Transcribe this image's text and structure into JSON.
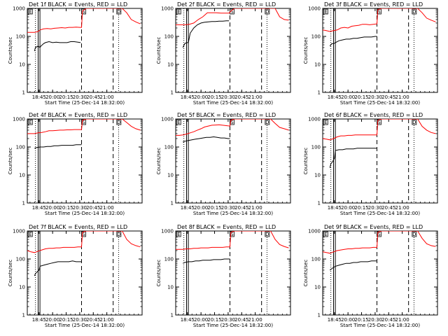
{
  "panel_titles": [
    "Det 1f BLACK = Events, RED = LLD",
    "Det 2f BLACK = Events, RED = LLD",
    "Det 3f BLACK = Events, RED = LLD",
    "Det 4f BLACK = Events, RED = LLD",
    "Det 5f BLACK = Events, RED = LLD",
    "Det 6f BLACK = Events, RED = LLD",
    "Det 7f BLACK = Events, RED = LLD",
    "Det 8f BLACK = Events, RED = LLD",
    "Det 9f BLACK = Events, RED = LLD"
  ],
  "xlabel": "Start Time (25-Dec-14 18:32:00)",
  "ylabel": "Counts/sec",
  "xticks": [
    "18:45",
    "20:00",
    "20:15",
    "20:30",
    "20:45",
    "21:00"
  ],
  "yticks": [
    "1",
    "10",
    "100",
    "1000"
  ],
  "flag_labels": [
    "E",
    "S",
    "D"
  ],
  "colors": {
    "events": "#000000",
    "lld": "#ff0000",
    "axes": "#000000",
    "background": "#ffffff"
  },
  "chart_data": [
    {
      "type": "line",
      "title": "Det 1f BLACK = Events, RED = LLD",
      "xlabel": "Start Time (25-Dec-14 18:32:00)",
      "ylabel": "Counts/sec",
      "y_scale": "log",
      "ylim": [
        1,
        1000
      ],
      "xlim_minutes": [
        0,
        127
      ],
      "series": [
        {
          "name": "Events",
          "color": "#000000",
          "x": [
            8,
            9,
            12,
            14,
            15,
            18,
            20,
            24,
            28,
            32,
            36,
            40,
            44,
            48,
            52,
            56,
            59
          ],
          "y": [
            30,
            40,
            45,
            40,
            45,
            55,
            60,
            65,
            60,
            62,
            60,
            60,
            60,
            65,
            65,
            62,
            60
          ]
        },
        {
          "name": "LLD",
          "color": "#ff0000",
          "x": [
            0,
            4,
            8,
            12,
            14,
            18,
            22,
            26,
            30,
            34,
            38,
            42,
            46,
            50,
            54,
            58,
            60,
            61,
            65,
            70,
            75,
            80,
            85,
            90,
            95,
            100,
            105,
            110,
            115,
            120,
            125
          ],
          "y": [
            140,
            140,
            140,
            150,
            170,
            185,
            190,
            185,
            195,
            200,
            205,
            200,
            210,
            210,
            215,
            210,
            210,
            800,
            1000,
            1000,
            1000,
            1000,
            1000,
            1000,
            1000,
            1000,
            1000,
            700,
            400,
            330,
            280
          ]
        }
      ]
    },
    {
      "type": "line",
      "title": "Det 2f BLACK = Events, RED = LLD",
      "xlabel": "Start Time (25-Dec-14 18:32:00)",
      "ylabel": "Counts/sec",
      "y_scale": "log",
      "ylim": [
        1,
        1000
      ],
      "xlim_minutes": [
        0,
        127
      ],
      "series": [
        {
          "name": "Events",
          "color": "#000000",
          "x": [
            8,
            10,
            12,
            14,
            16,
            20,
            24,
            28,
            32,
            36,
            40,
            44,
            48,
            52,
            56,
            59
          ],
          "y": [
            40,
            55,
            60,
            60,
            130,
            200,
            260,
            300,
            320,
            330,
            340,
            340,
            350,
            350,
            360,
            360
          ]
        },
        {
          "name": "LLD",
          "color": "#ff0000",
          "x": [
            0,
            5,
            10,
            15,
            20,
            25,
            30,
            35,
            40,
            45,
            50,
            55,
            59,
            61,
            65,
            70,
            75,
            80,
            85,
            90,
            95,
            100,
            105,
            110,
            115,
            120,
            125
          ],
          "y": [
            260,
            260,
            260,
            270,
            300,
            400,
            500,
            700,
            700,
            700,
            680,
            680,
            680,
            800,
            1000,
            1000,
            1000,
            1000,
            1000,
            1000,
            1000,
            1000,
            1000,
            1000,
            500,
            400,
            380
          ]
        }
      ]
    },
    {
      "type": "line",
      "title": "Det 3f BLACK = Events, RED = LLD",
      "xlabel": "Start Time (25-Dec-14 18:32:00)",
      "ylabel": "Counts/sec",
      "y_scale": "log",
      "ylim": [
        1,
        1000
      ],
      "xlim_minutes": [
        0,
        127
      ],
      "series": [
        {
          "name": "Events",
          "color": "#000000",
          "x": [
            8,
            10,
            12,
            14,
            18,
            22,
            26,
            30,
            34,
            38,
            42,
            46,
            50,
            54,
            58,
            60
          ],
          "y": [
            45,
            55,
            55,
            60,
            70,
            75,
            80,
            80,
            85,
            85,
            90,
            95,
            95,
            95,
            100,
            100
          ]
        },
        {
          "name": "LLD",
          "color": "#ff0000",
          "x": [
            0,
            4,
            8,
            12,
            16,
            20,
            24,
            28,
            32,
            36,
            40,
            44,
            48,
            52,
            56,
            60,
            61,
            65,
            70,
            75,
            80,
            85,
            90,
            95,
            100,
            105,
            110,
            115,
            120,
            125
          ],
          "y": [
            170,
            160,
            150,
            160,
            170,
            200,
            210,
            200,
            230,
            240,
            250,
            270,
            270,
            260,
            270,
            280,
            900,
            1000,
            1000,
            1000,
            1000,
            1000,
            1000,
            1000,
            1000,
            1000,
            700,
            450,
            380,
            330
          ]
        }
      ]
    },
    {
      "type": "line",
      "title": "Det 4f BLACK = Events, RED = LLD",
      "xlabel": "Start Time (25-Dec-14 18:32:00)",
      "ylabel": "Counts/sec",
      "y_scale": "log",
      "ylim": [
        1,
        1000
      ],
      "xlim_minutes": [
        0,
        127
      ],
      "series": [
        {
          "name": "Events",
          "color": "#000000",
          "x": [
            8,
            10,
            14,
            18,
            22,
            26,
            30,
            34,
            38,
            42,
            46,
            50,
            54,
            58,
            60
          ],
          "y": [
            90,
            95,
            100,
            100,
            105,
            105,
            110,
            110,
            115,
            115,
            115,
            115,
            120,
            120,
            120
          ]
        },
        {
          "name": "LLD",
          "color": "#ff0000",
          "x": [
            0,
            4,
            8,
            12,
            16,
            20,
            24,
            28,
            32,
            36,
            40,
            44,
            48,
            52,
            56,
            60,
            61,
            65,
            70,
            75,
            80,
            85,
            90,
            95,
            100,
            105,
            110,
            115,
            120,
            125
          ],
          "y": [
            300,
            300,
            300,
            320,
            330,
            350,
            380,
            380,
            390,
            400,
            400,
            410,
            410,
            420,
            420,
            420,
            900,
            1000,
            1000,
            1000,
            1000,
            1000,
            1000,
            1000,
            1000,
            1000,
            750,
            550,
            450,
            400
          ]
        }
      ]
    },
    {
      "type": "line",
      "title": "Det 5f BLACK = Events, RED = LLD",
      "xlabel": "Start Time (25-Dec-14 18:32:00)",
      "ylabel": "Counts/sec",
      "y_scale": "log",
      "ylim": [
        1,
        1000
      ],
      "xlim_minutes": [
        0,
        127
      ],
      "series": [
        {
          "name": "Events",
          "color": "#000000",
          "x": [
            8,
            10,
            14,
            18,
            22,
            26,
            30,
            34,
            38,
            42,
            46,
            50,
            54,
            58,
            60
          ],
          "y": [
            150,
            160,
            170,
            180,
            190,
            200,
            210,
            220,
            220,
            230,
            220,
            210,
            210,
            200,
            200
          ]
        },
        {
          "name": "LLD",
          "color": "#ff0000",
          "x": [
            0,
            4,
            8,
            12,
            16,
            20,
            24,
            28,
            32,
            36,
            40,
            44,
            48,
            52,
            56,
            60,
            61,
            65,
            70,
            75,
            80,
            85,
            90,
            95,
            100,
            105,
            110,
            115,
            120,
            125
          ],
          "y": [
            260,
            260,
            270,
            290,
            320,
            350,
            400,
            450,
            520,
            560,
            600,
            610,
            620,
            600,
            580,
            560,
            900,
            1000,
            1000,
            1000,
            1000,
            1000,
            1000,
            1000,
            1000,
            1000,
            700,
            500,
            450,
            400
          ]
        }
      ]
    },
    {
      "type": "line",
      "title": "Det 6f BLACK = Events, RED = LLD",
      "xlabel": "Start Time (25-Dec-14 18:32:00)",
      "ylabel": "Counts/sec",
      "y_scale": "log",
      "ylim": [
        1,
        1000
      ],
      "xlim_minutes": [
        0,
        127
      ],
      "series": [
        {
          "name": "Events",
          "color": "#000000",
          "x": [
            8,
            9,
            11,
            13,
            14,
            18,
            22,
            26,
            30,
            34,
            38,
            42,
            46,
            50,
            54,
            58,
            60
          ],
          "y": [
            18,
            25,
            30,
            40,
            75,
            80,
            80,
            85,
            85,
            85,
            90,
            90,
            90,
            90,
            90,
            90,
            90
          ]
        },
        {
          "name": "LLD",
          "color": "#ff0000",
          "x": [
            0,
            4,
            8,
            12,
            16,
            20,
            24,
            28,
            32,
            36,
            40,
            44,
            48,
            52,
            56,
            60,
            61,
            65,
            70,
            75,
            80,
            85,
            90,
            95,
            100,
            105,
            110,
            115,
            120,
            125
          ],
          "y": [
            200,
            190,
            180,
            200,
            230,
            250,
            250,
            260,
            260,
            270,
            270,
            270,
            270,
            270,
            270,
            270,
            900,
            1000,
            1000,
            1000,
            1000,
            1000,
            1000,
            1000,
            1000,
            1000,
            550,
            400,
            330,
            300
          ]
        }
      ]
    },
    {
      "type": "line",
      "title": "Det 7f BLACK = Events, RED = LLD",
      "xlabel": "Start Time (25-Dec-14 18:32:00)",
      "ylabel": "Counts/sec",
      "y_scale": "log",
      "ylim": [
        1,
        1000
      ],
      "xlim_minutes": [
        0,
        127
      ],
      "series": [
        {
          "name": "Events",
          "color": "#000000",
          "x": [
            8,
            9,
            11,
            13,
            14,
            18,
            22,
            26,
            30,
            34,
            38,
            42,
            46,
            50,
            54,
            58,
            60
          ],
          "y": [
            25,
            30,
            35,
            40,
            55,
            60,
            65,
            70,
            75,
            80,
            80,
            80,
            80,
            85,
            80,
            80,
            80
          ]
        },
        {
          "name": "LLD",
          "color": "#ff0000",
          "x": [
            0,
            4,
            8,
            12,
            16,
            20,
            24,
            28,
            32,
            36,
            40,
            44,
            48,
            52,
            56,
            60,
            61,
            65,
            70,
            75,
            80,
            85,
            90,
            95,
            100,
            105,
            110,
            115,
            120,
            125
          ],
          "y": [
            200,
            180,
            170,
            190,
            210,
            230,
            240,
            240,
            250,
            250,
            260,
            260,
            260,
            260,
            270,
            270,
            900,
            1000,
            1000,
            1000,
            1000,
            1000,
            1000,
            1000,
            1000,
            1000,
            500,
            350,
            300,
            270
          ]
        }
      ]
    },
    {
      "type": "line",
      "title": "Det 8f BLACK = Events, RED = LLD",
      "xlabel": "Start Time (25-Dec-14 18:32:00)",
      "ylabel": "Counts/sec",
      "y_scale": "log",
      "ylim": [
        1,
        1000
      ],
      "xlim_minutes": [
        0,
        127
      ],
      "series": [
        {
          "name": "Events",
          "color": "#000000",
          "x": [
            8,
            10,
            14,
            18,
            22,
            26,
            30,
            34,
            38,
            42,
            46,
            50,
            54,
            58,
            60
          ],
          "y": [
            70,
            75,
            80,
            80,
            85,
            85,
            90,
            90,
            90,
            95,
            95,
            95,
            100,
            100,
            100
          ]
        },
        {
          "name": "LLD",
          "color": "#ff0000",
          "x": [
            0,
            4,
            8,
            12,
            16,
            20,
            24,
            28,
            32,
            36,
            40,
            44,
            48,
            52,
            56,
            60,
            61,
            65,
            70,
            75,
            80,
            85,
            90,
            95,
            100,
            105,
            110,
            115,
            120,
            125
          ],
          "y": [
            220,
            220,
            220,
            230,
            230,
            240,
            240,
            250,
            250,
            250,
            260,
            260,
            260,
            260,
            270,
            270,
            900,
            1000,
            1000,
            1000,
            1000,
            1000,
            1000,
            1000,
            1000,
            1000,
            500,
            330,
            280,
            250
          ]
        }
      ]
    },
    {
      "type": "line",
      "title": "Det 9f BLACK = Events, RED = LLD",
      "xlabel": "Start Time (25-Dec-14 18:32:00)",
      "ylabel": "Counts/sec",
      "y_scale": "log",
      "ylim": [
        1,
        1000
      ],
      "xlim_minutes": [
        0,
        127
      ],
      "series": [
        {
          "name": "Events",
          "color": "#000000",
          "x": [
            8,
            10,
            12,
            14,
            18,
            22,
            26,
            30,
            34,
            38,
            42,
            46,
            50,
            54,
            58,
            60
          ],
          "y": [
            40,
            45,
            50,
            55,
            60,
            65,
            70,
            70,
            75,
            75,
            80,
            80,
            80,
            85,
            85,
            85
          ]
        },
        {
          "name": "LLD",
          "color": "#ff0000",
          "x": [
            0,
            4,
            8,
            12,
            16,
            20,
            24,
            28,
            32,
            36,
            40,
            44,
            48,
            52,
            56,
            60,
            61,
            65,
            70,
            75,
            80,
            85,
            90,
            95,
            100,
            105,
            110,
            115,
            120,
            125
          ],
          "y": [
            180,
            170,
            160,
            180,
            200,
            210,
            220,
            230,
            230,
            240,
            240,
            250,
            250,
            250,
            260,
            260,
            900,
            1000,
            1000,
            1000,
            1000,
            1000,
            1000,
            1000,
            1000,
            1000,
            550,
            350,
            300,
            280
          ]
        }
      ]
    }
  ]
}
